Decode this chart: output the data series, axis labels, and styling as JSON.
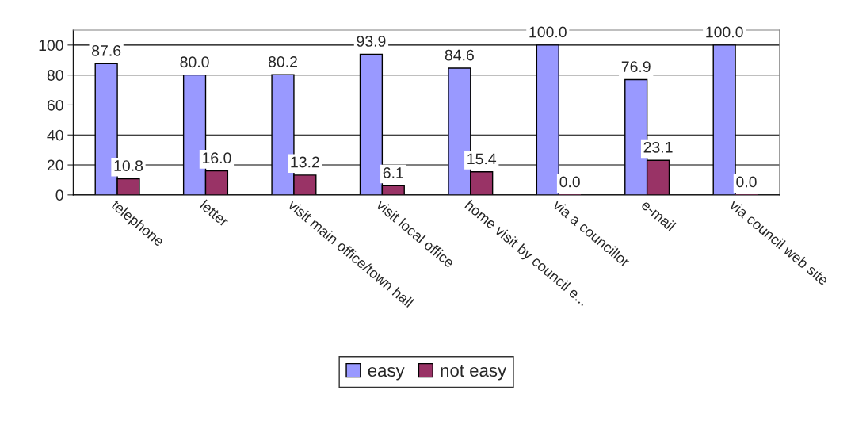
{
  "chart_data": {
    "type": "bar",
    "categories": [
      "telephone",
      "letter",
      "visit main office/town hall",
      "visit local office",
      "home visit by council e...",
      "via a councillor",
      "e-mail",
      "via council web site"
    ],
    "series": [
      {
        "name": "easy",
        "color": "#9999ff",
        "values": [
          87.6,
          80.0,
          80.2,
          93.9,
          84.6,
          100.0,
          76.9,
          100.0
        ],
        "value_labels": [
          "87.6",
          "80.0",
          "80.2",
          "93.9",
          "84.6",
          "100.0",
          "76.9",
          "100.0"
        ]
      },
      {
        "name": "not easy",
        "color": "#993366",
        "values": [
          10.8,
          16.0,
          13.2,
          6.1,
          15.4,
          0.0,
          23.1,
          0.0
        ],
        "value_labels": [
          "10.8",
          "16.0",
          "13.2",
          "6.1",
          "15.4",
          "0.0",
          "23.1",
          "0.0"
        ]
      }
    ],
    "ylim": [
      0,
      110
    ],
    "yticks": [
      0,
      20,
      40,
      60,
      80,
      100
    ],
    "grid": "y",
    "legend": "bottom"
  }
}
